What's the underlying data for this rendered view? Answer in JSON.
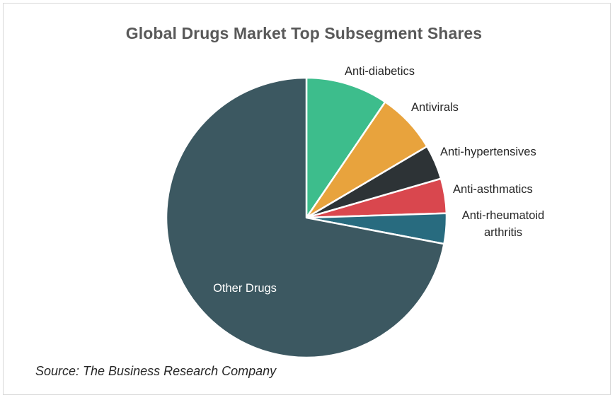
{
  "chart_data": {
    "type": "pie",
    "title": "Global Drugs Market Top Subsegment Shares",
    "slices": [
      {
        "label": "Anti-diabetics",
        "value": 9.5,
        "color": "#3dbd8c"
      },
      {
        "label": "Antivirals",
        "value": 7.0,
        "color": "#e8a33d"
      },
      {
        "label": "Anti-hypertensives",
        "value": 4.0,
        "color": "#2d3336"
      },
      {
        "label": "Anti-asthmatics",
        "value": 4.0,
        "color": "#d9474e"
      },
      {
        "label": "Anti-rheumatoid arthritis",
        "value": 3.5,
        "color": "#286b7f"
      },
      {
        "label": "Other Drugs",
        "value": 72.0,
        "color": "#3c5861"
      }
    ],
    "source": "Source: The Business Research Company"
  }
}
